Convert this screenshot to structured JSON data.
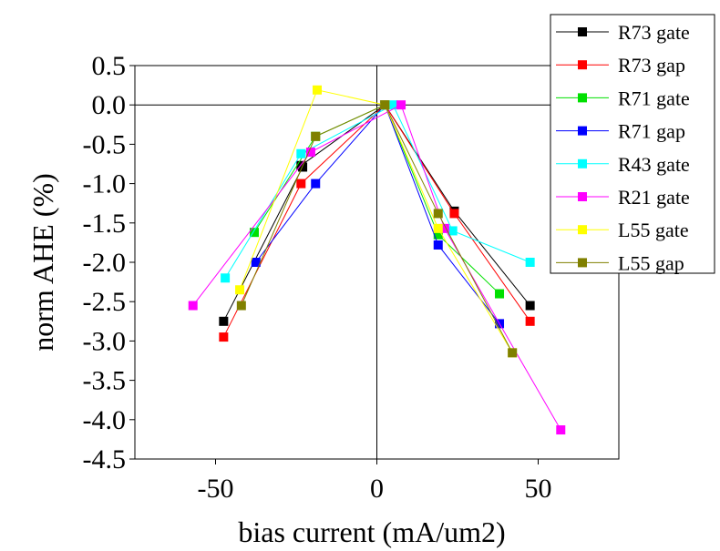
{
  "chart_data": {
    "type": "scatter",
    "title": "",
    "xlabel": "bias current (mA/um2)",
    "ylabel": "norm AHE (%)",
    "xlim": [
      -75,
      75
    ],
    "ylim": [
      -4.5,
      0.5
    ],
    "x_ticks": [
      -50,
      0,
      50
    ],
    "y_ticks": [
      0.5,
      0.0,
      -0.5,
      -1.0,
      -1.5,
      -2.0,
      -2.5,
      -3.0,
      -3.5,
      -4.0,
      -4.5
    ],
    "x_tick_labels": [
      "-50",
      "0",
      "50"
    ],
    "y_tick_labels": [
      "0.5",
      "0.0",
      "-0.5",
      "-1.0",
      "-1.5",
      "-2.0",
      "-2.5",
      "-3.0",
      "-3.5",
      "-4.0",
      "-4.5"
    ],
    "grid": false,
    "zero_lines": true,
    "legend_position": "top-right",
    "series": [
      {
        "name": "R73 gate",
        "color": "#000000",
        "points": [
          [
            -47.5,
            -2.75
          ],
          [
            -23,
            -0.79
          ],
          [
            -23.5,
            -0.77
          ],
          [
            2.5,
            0.0
          ],
          [
            24,
            -1.35
          ],
          [
            47.5,
            -2.55
          ]
        ]
      },
      {
        "name": "R73 gap",
        "color": "#ff0000",
        "points": [
          [
            -47.5,
            -2.95
          ],
          [
            -23.5,
            -1.0
          ],
          [
            2.5,
            0.0
          ],
          [
            24,
            -1.38
          ],
          [
            47.5,
            -2.75
          ]
        ]
      },
      {
        "name": "R71 gate",
        "color": "#00e000",
        "points": [
          [
            -38,
            -1.62
          ],
          [
            -19,
            -0.4
          ],
          [
            2.5,
            0.0
          ],
          [
            19,
            -1.65
          ],
          [
            38,
            -2.4
          ]
        ]
      },
      {
        "name": "R71 gap",
        "color": "#0000ff",
        "points": [
          [
            -37.5,
            -2.0
          ],
          [
            -19,
            -1.0
          ],
          [
            2.5,
            0.0
          ],
          [
            19,
            -1.78
          ],
          [
            38,
            -2.78
          ]
        ]
      },
      {
        "name": "R43 gate",
        "color": "#00ffff",
        "points": [
          [
            -47,
            -2.2
          ],
          [
            -23.5,
            -0.62
          ],
          [
            5,
            0.0
          ],
          [
            23.5,
            -1.6
          ],
          [
            47.5,
            -2.0
          ]
        ]
      },
      {
        "name": "R21 gate",
        "color": "#ff00ff",
        "points": [
          [
            -57,
            -2.55
          ],
          [
            -20.5,
            -0.6
          ],
          [
            7.5,
            0.0
          ],
          [
            21,
            -1.57
          ],
          [
            57,
            -4.13
          ]
        ]
      },
      {
        "name": "L55 gate",
        "color": "#ffff00",
        "points": [
          [
            -42.5,
            -2.35
          ],
          [
            -18.5,
            0.19
          ],
          [
            2.5,
            0.0
          ],
          [
            19,
            -1.57
          ],
          [
            42,
            -3.15
          ]
        ]
      },
      {
        "name": "L55 gap",
        "color": "#808000",
        "points": [
          [
            -42,
            -2.55
          ],
          [
            -19,
            -0.4
          ],
          [
            2.5,
            0.0
          ],
          [
            19,
            -1.38
          ],
          [
            42,
            -3.15
          ]
        ]
      }
    ]
  }
}
